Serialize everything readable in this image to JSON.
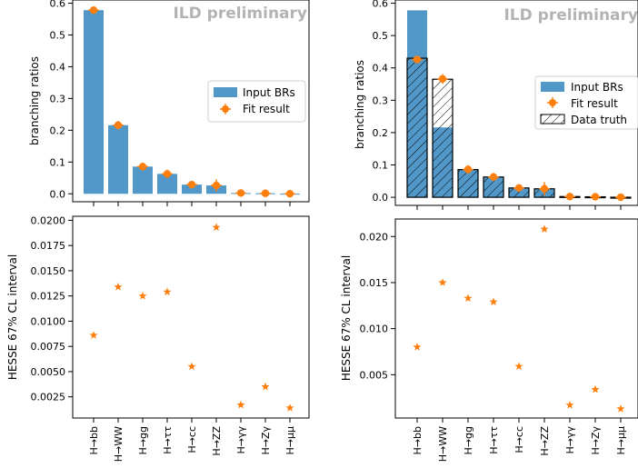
{
  "colors": {
    "bar": "#5198c8",
    "fit": "#ff7f0e",
    "axis": "#000000",
    "watermark": "#b3b3b3"
  },
  "categories": [
    "H→bb",
    "H→WW",
    "H→gg",
    "H→ττ",
    "H→cc",
    "H→ZZ",
    "H→γγ",
    "H→Zγ",
    "H→μμ"
  ],
  "chart_data": [
    {
      "type": "bar",
      "panel": "top-left",
      "watermark": "ILD preliminary",
      "ylabel": "branching ratios",
      "ylim": [
        -0.025,
        0.61
      ],
      "yticks": [
        0.0,
        0.1,
        0.2,
        0.3,
        0.4,
        0.5,
        0.6
      ],
      "ytick_labels": [
        "0.0",
        "0.1",
        "0.2",
        "0.3",
        "0.4",
        "0.5",
        "0.6"
      ],
      "legend": {
        "position": "center-right",
        "entries": [
          "Input BRs",
          "Fit result"
        ]
      },
      "series": [
        {
          "name": "Input BRs",
          "kind": "bar",
          "values": [
            0.578,
            0.216,
            0.0857,
            0.0627,
            0.0289,
            0.0263,
            0.00227,
            0.00154,
            0.000218
          ]
        },
        {
          "name": "Fit result",
          "kind": "errorbar",
          "values": [
            0.578,
            0.216,
            0.0857,
            0.0627,
            0.0289,
            0.0263,
            0.00227,
            0.00154,
            0.000218
          ],
          "errors": [
            0.0086,
            0.0134,
            0.0125,
            0.0129,
            0.0055,
            0.0193,
            0.0017,
            0.0035,
            0.0014
          ]
        }
      ]
    },
    {
      "type": "bar",
      "panel": "top-right",
      "watermark": "ILD preliminary",
      "ylabel": "branching ratios",
      "ylim": [
        -0.025,
        0.61
      ],
      "yticks": [
        0.0,
        0.1,
        0.2,
        0.3,
        0.4,
        0.5,
        0.6
      ],
      "ytick_labels": [
        "0.0",
        "0.1",
        "0.2",
        "0.3",
        "0.4",
        "0.5",
        "0.6"
      ],
      "legend": {
        "position": "center-right",
        "entries": [
          "Input BRs",
          "Fit result",
          "Data truth"
        ]
      },
      "series": [
        {
          "name": "Input BRs",
          "kind": "bar",
          "values": [
            0.578,
            0.216,
            0.0857,
            0.0627,
            0.0289,
            0.0263,
            0.00227,
            0.00154,
            0.000218
          ]
        },
        {
          "name": "Data truth",
          "kind": "hatched-bar",
          "values": [
            0.43,
            0.365,
            0.0857,
            0.0627,
            0.0289,
            0.0263,
            0.00227,
            0.00154,
            0.000218
          ]
        },
        {
          "name": "Fit result",
          "kind": "errorbar",
          "values": [
            0.426,
            0.366,
            0.086,
            0.0627,
            0.0289,
            0.0263,
            0.00227,
            0.00154,
            0.000218
          ],
          "errors": [
            0.008,
            0.015,
            0.0133,
            0.0129,
            0.0059,
            0.0208,
            0.0017,
            0.0034,
            0.0013
          ]
        }
      ]
    },
    {
      "type": "scatter",
      "panel": "bottom-left",
      "ylabel": "HESSE 67% CL interval",
      "ylim": [
        0.0004,
        0.0204
      ],
      "yticks": [
        0.0025,
        0.005,
        0.0075,
        0.01,
        0.0125,
        0.015,
        0.0175,
        0.02
      ],
      "ytick_labels": [
        "0.0025",
        "0.0050",
        "0.0075",
        "0.0100",
        "0.0125",
        "0.0150",
        "0.0175",
        "0.0200"
      ],
      "values": [
        0.0086,
        0.0134,
        0.0125,
        0.0129,
        0.0055,
        0.0193,
        0.0017,
        0.0035,
        0.0014
      ]
    },
    {
      "type": "scatter",
      "panel": "bottom-right",
      "ylabel": "HESSE 67% CL interval",
      "ylim": [
        0.0003,
        0.0219
      ],
      "yticks": [
        0.005,
        0.01,
        0.015,
        0.02
      ],
      "ytick_labels": [
        "0.005",
        "0.010",
        "0.015",
        "0.020"
      ],
      "values": [
        0.008,
        0.015,
        0.0133,
        0.0129,
        0.0059,
        0.0208,
        0.0017,
        0.0034,
        0.0013
      ]
    }
  ]
}
